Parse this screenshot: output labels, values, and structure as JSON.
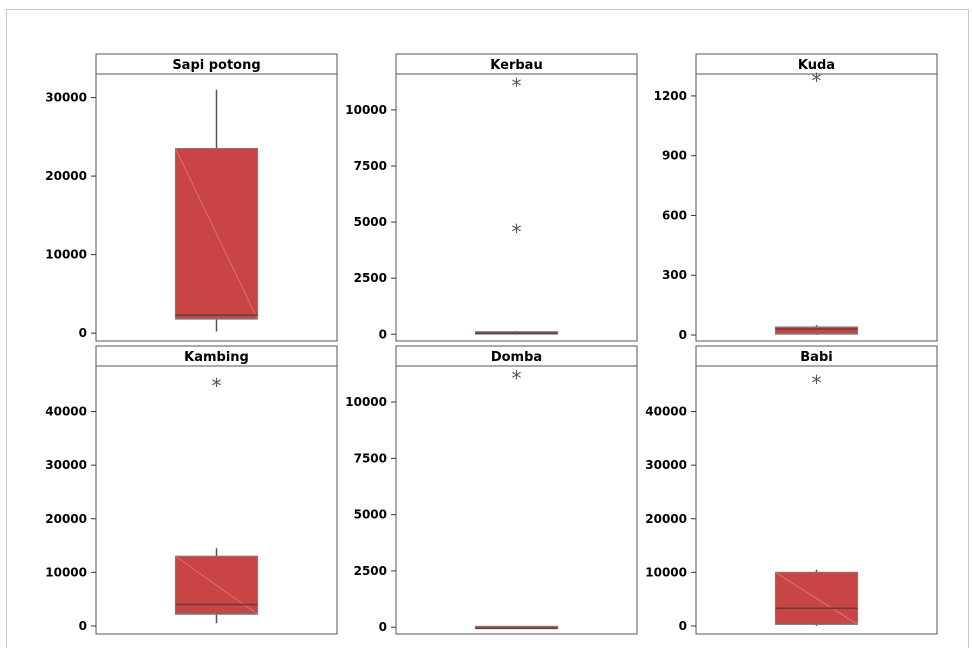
{
  "colors": {
    "box_fill": "#c94444",
    "box_stroke": "#7a7a7a",
    "median": "#6a3a3a",
    "whisker": "#555555",
    "outlier": "#555555",
    "panel_border": "#555555"
  },
  "chart_data": {
    "type": "boxplot",
    "layout": "grid 2 rows x 3 columns",
    "panels": [
      {
        "title": "Sapi potong",
        "ylim": [
          -1000,
          33000
        ],
        "yticks": [
          0,
          10000,
          20000,
          30000
        ],
        "box": {
          "whisker_low": 200,
          "q1": 1800,
          "median": 2300,
          "q3": 23500,
          "whisker_high": 31000
        },
        "outliers": []
      },
      {
        "title": "Kerbau",
        "ylim": [
          -300,
          11600
        ],
        "yticks": [
          0,
          2500,
          5000,
          7500,
          10000
        ],
        "box": {
          "whisker_low": 0,
          "q1": 10,
          "median": 50,
          "q3": 110,
          "whisker_high": 150
        },
        "outliers": [
          4600,
          11100
        ]
      },
      {
        "title": "Kuda",
        "ylim": [
          -30,
          1310
        ],
        "yticks": [
          0,
          300,
          600,
          900,
          1200
        ],
        "box": {
          "whisker_low": 0,
          "q1": 5,
          "median": 30,
          "q3": 40,
          "whisker_high": 50
        },
        "outliers": [
          1280
        ]
      },
      {
        "title": "Kambing",
        "ylim": [
          -1500,
          48500
        ],
        "yticks": [
          0,
          10000,
          20000,
          30000,
          40000
        ],
        "box": {
          "whisker_low": 500,
          "q1": 2200,
          "median": 4000,
          "q3": 13000,
          "whisker_high": 14500
        },
        "outliers": [
          45000
        ]
      },
      {
        "title": "Domba",
        "ylim": [
          -300,
          11600
        ],
        "yticks": [
          0,
          2500,
          5000,
          7500,
          10000
        ],
        "box": {
          "whisker_low": -50,
          "q1": -50,
          "median": -50,
          "q3": -50,
          "whisker_high": -50
        },
        "outliers": [
          11100
        ]
      },
      {
        "title": "Babi",
        "ylim": [
          -1500,
          48500
        ],
        "yticks": [
          0,
          10000,
          20000,
          30000,
          40000
        ],
        "box": {
          "whisker_low": 0,
          "q1": 300,
          "median": 3300,
          "q3": 10000,
          "whisker_high": 10500
        },
        "outliers": [
          45500
        ]
      }
    ]
  }
}
